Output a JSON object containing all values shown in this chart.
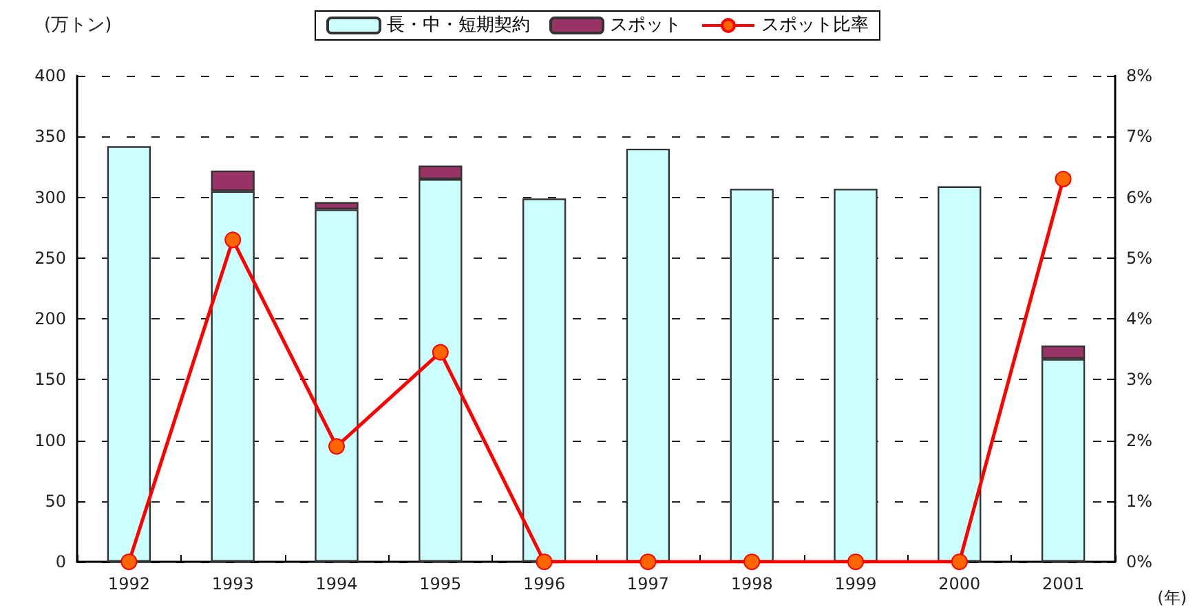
{
  "chart_data": {
    "type": "bar",
    "stacked": true,
    "ylabel": "(万トン)",
    "xlabel": "(年)",
    "categories": [
      "1992",
      "1993",
      "1994",
      "1995",
      "1996",
      "1997",
      "1998",
      "1999",
      "2000",
      "2001"
    ],
    "series": [
      {
        "name": "長・中・短期契約",
        "color": "#ccffff",
        "values": [
          342,
          305,
          290,
          315,
          299,
          340,
          307,
          307,
          309,
          167
        ]
      },
      {
        "name": "スポット",
        "color": "#993366",
        "values": [
          0,
          17,
          6,
          11,
          0,
          0,
          0,
          0,
          0,
          11
        ]
      },
      {
        "name": "スポット比率",
        "type": "line",
        "axis": "y2",
        "color": "#ff0000",
        "marker": "circle",
        "values": [
          0,
          5.3,
          1.9,
          3.45,
          0,
          0,
          0,
          0,
          0,
          6.3
        ]
      }
    ],
    "ylim": [
      0,
      400
    ],
    "yticks": [
      0,
      50,
      100,
      150,
      200,
      250,
      300,
      350,
      400
    ],
    "y2lim": [
      0,
      8
    ],
    "y2ticks": [
      {
        "value": 0,
        "label": "0%"
      },
      {
        "value": 1,
        "label": "1%"
      },
      {
        "value": 2,
        "label": "2%"
      },
      {
        "value": 3,
        "label": "3%"
      },
      {
        "value": 4,
        "label": "4%"
      },
      {
        "value": 5,
        "label": "5%"
      },
      {
        "value": 6,
        "label": "6%"
      },
      {
        "value": 7,
        "label": "7%"
      },
      {
        "value": 8,
        "label": "8%"
      }
    ],
    "grid": "y",
    "legend": "top"
  }
}
